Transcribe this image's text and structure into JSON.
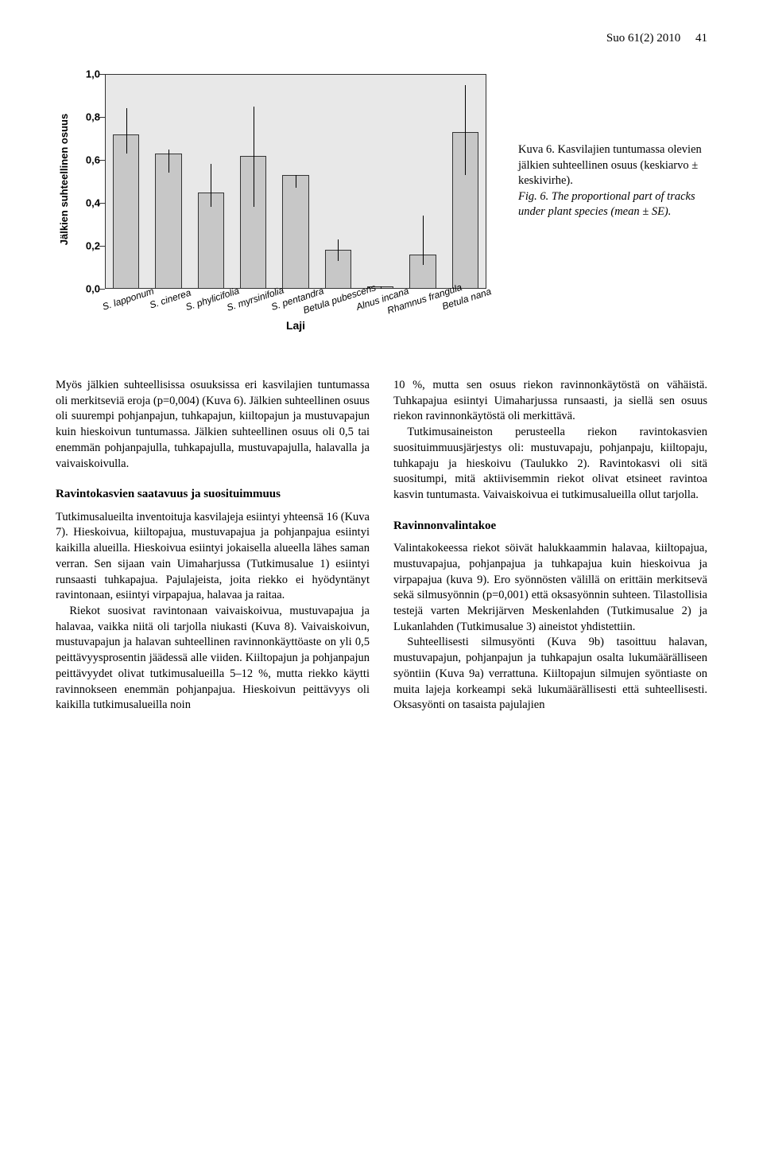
{
  "running_head": {
    "journal": "Suo 61(2) 2010",
    "page": "41"
  },
  "figure": {
    "type": "bar",
    "y_title": "Jälkien suhteellinen osuus",
    "x_title": "Laji",
    "ylim": [
      0,
      1.0
    ],
    "ytick_step": 0.2,
    "yticks": [
      "0,0",
      "0,2",
      "0,4",
      "0,6",
      "0,8",
      "1,0"
    ],
    "ytick_vals": [
      0,
      0.2,
      0.4,
      0.6,
      0.8,
      1.0
    ],
    "panel_bg": "#e8e8e8",
    "bar_color": "#c7c7c7",
    "bar_border": "#333333",
    "font_family": "Arial",
    "categories": [
      "S. lapponum",
      "S. cinerea",
      "S. phylicifolia",
      "S. myrsinifolia",
      "S. pentandra",
      "Betula pubescens",
      "Alnus incana",
      "Rhamnus frangula",
      "Betula nana"
    ],
    "values": [
      0.72,
      0.63,
      0.45,
      0.62,
      0.53,
      0.18,
      0.01,
      0.16,
      0.73
    ],
    "err_low": [
      0.63,
      0.54,
      0.38,
      0.38,
      0.47,
      0.13,
      0.0,
      0.11,
      0.53
    ],
    "err_high": [
      0.84,
      0.65,
      0.58,
      0.85,
      0.53,
      0.23,
      0.01,
      0.34,
      0.95
    ],
    "caption_fi_label": "Kuva 6.",
    "caption_fi": "Kasvilajien tuntumassa olevien jälkien suhteellinen osuus (keskiarvo ± keskivirhe).",
    "caption_en_label": "Fig. 6.",
    "caption_en": "The proportional part of tracks under plant species (mean ± SE)."
  },
  "body": {
    "p1": "Myös jälkien suhteellisissa osuuksissa eri kasvilajien tuntumassa oli merkitseviä eroja (p=0,004) (Kuva 6). Jälkien suhteellinen osuus oli suurempi pohjanpajun, tuhkapajun, kiiltopajun ja mustuvapajun kuin hieskoivun tuntumassa. Jälkien suhteellinen osuus oli 0,5 tai enemmän pohjanpajulla, tuhkapajulla, mustuvapajulla, halavalla ja vaivaiskoivulla.",
    "h1": "Ravintokasvien saatavuus ja suosituimmuus",
    "p2": "Tutkimusalueilta inventoituja kasvilajeja esiintyi yhteensä 16 (Kuva 7). Hieskoivua, kiiltopajua, mustuvapajua ja pohjanpajua esiintyi kaikilla alueilla. Hieskoivua esiintyi jokaisella alueella lähes saman verran. Sen sijaan vain Uimaharjussa (Tutkimusalue 1) esiintyi runsaasti tuhkapajua. Pajulajeista, joita riekko ei hyödyntänyt ravintonaan, esiintyi virpapajua, halavaa ja raitaa.",
    "p3": "Riekot suosivat ravintonaan vaivaiskoivua, mustuvapajua ja halavaa, vaikka niitä oli tarjolla niukasti (Kuva 8). Vaivaiskoivun, mustuvapajun ja halavan suhteellinen ravinnonkäyttöaste on yli 0,5 peittävyysprosentin jäädessä alle viiden. Kiiltopajun ja pohjanpajun peittävyydet olivat tutkimusalueilla 5–12 %, mutta riekko käytti ravinnokseen enemmän pohjanpajua. Hieskoivun peittävyys oli kaikilla tutkimusalueilla noin",
    "p4": "10 %, mutta sen osuus riekon ravinnonkäytöstä on vähäistä. Tuhkapajua esiintyi Uimaharjussa runsaasti, ja siellä sen osuus riekon ravinnonkäytöstä oli merkittävä.",
    "p5": "Tutkimusaineiston perusteella riekon ravintokasvien suosituimmuusjärjestys oli: mustuvapaju, pohjanpaju, kiiltopaju, tuhkapaju ja hieskoivu (Taulukko 2). Ravintokasvi oli sitä suositumpi, mitä aktiivisemmin riekot olivat etsineet ravintoa kasvin tuntumasta. Vaivaiskoivua ei tutkimusalueilla ollut tarjolla.",
    "h2": "Ravinnonvalintakoe",
    "p6": "Valintakokeessa riekot söivät halukkaammin halavaa, kiiltopajua, mustuvapajua, pohjanpajua ja tuhkapajua kuin hieskoivua ja virpapajua (kuva 9). Ero syönnösten välillä on erittäin merkitsevä sekä silmusyönnin (p=0,001) että oksasyönnin suhteen. Tilastollisia testejä varten Mekrijärven Meskenlahden (Tutkimusalue 2) ja Lukanlahden (Tutkimusalue 3) aineistot yhdistettiin.",
    "p7": "Suhteellisesti silmusyönti (Kuva 9b) tasoittuu halavan, mustuvapajun, pohjanpajun ja tuhkapajun osalta lukumäärälliseen syöntiin (Kuva 9a) verrattuna. Kiiltopajun silmujen syöntiaste on muita lajeja korkeampi sekä lukumäärällisesti että suhteellisesti. Oksasyönti on tasaista pajulajien"
  }
}
